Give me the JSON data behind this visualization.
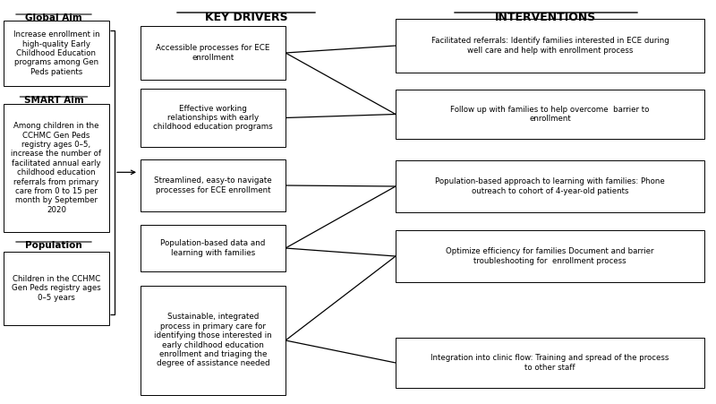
{
  "bg_color": "#ffffff",
  "left_column": {
    "global_aim_label": "Global Aim",
    "global_aim_text": "Increase enrollment in\nhigh-quality Early\nChildhood Education\nprograms among Gen\nPeds patients",
    "smart_aim_label": "SMART Aim",
    "smart_aim_text": "Among children in the\nCCHMC Gen Peds\nregistry ages 0–5,\nincrease the number of\nfacilitated annual early\nchildhood education\nreferrals from primary\ncare from 0 to 15 per\nmonth by September\n2020",
    "population_label": "Population",
    "population_text": "Children in the CCHMC\nGen Peds registry ages\n0–5 years"
  },
  "key_drivers_header": "KEY DRIVERS",
  "interventions_header": "INTERVENTIONS",
  "key_drivers": [
    "Accessible processes for ECE\nenrollment",
    "Effective working\nrelationships with early\nchildhood education programs",
    "Streamlined, easy-to navigate\nprocesses for ECE enrollment",
    "Population-based data and\nlearning with families",
    "Sustainable, integrated\nprocess in primary care for\nidentifying those interested in\nearly childhood education\nenrollment and triaging the\ndegree of assistance needed"
  ],
  "interventions": [
    "Facilitated referrals: Identify families interested in ECE during\nwell care and help with enrollment process",
    "Follow up with families to help overcome  barrier to\nenrollment",
    "Population-based approach to learning with families: Phone\noutreach to cohort of 4-year-old patients",
    "Optimize efficiency for families Document and barrier\ntroubleshooting for  enrollment process",
    "Integration into clinic flow: Training and spread of the process\nto other staff"
  ],
  "connections": [
    [
      0,
      0
    ],
    [
      0,
      1
    ],
    [
      1,
      1
    ],
    [
      2,
      2
    ],
    [
      3,
      2
    ],
    [
      3,
      3
    ],
    [
      4,
      3
    ],
    [
      4,
      4
    ]
  ],
  "xlim": [
    0,
    8.0
  ],
  "ylim": [
    0,
    4.51
  ]
}
